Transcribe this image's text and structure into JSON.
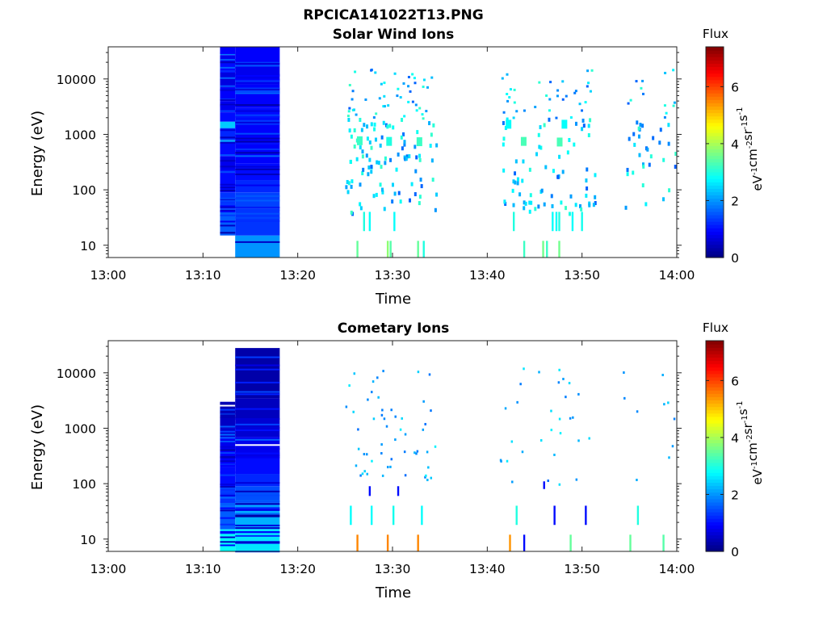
{
  "figure": {
    "title": "RPCICA141022T13.PNG"
  },
  "colorbar": {
    "title": "Flux",
    "unit_base": "eV",
    "unit_parts": [
      {
        "b": "eV",
        "e": "-1"
      },
      {
        "b": "cm",
        "e": "-2"
      },
      {
        "b": "sr",
        "e": "-1"
      },
      {
        "b": "s",
        "e": "-1"
      }
    ],
    "ticks": [
      "0",
      "2",
      "4",
      "6"
    ],
    "range": [
      0,
      7.4
    ],
    "colormap": "jet"
  },
  "chart_data": [
    {
      "type": "heatmap",
      "title": "Solar Wind Ions",
      "xlabel": "Time",
      "ylabel": "Energy (eV)",
      "x_ticks": [
        "13:00",
        "13:10",
        "13:20",
        "13:30",
        "13:40",
        "13:50",
        "14:00"
      ],
      "x_range_min": [
        0,
        60
      ],
      "y_ticks": [
        "10",
        "100",
        "1000",
        "10000"
      ],
      "y_range_eV": [
        6,
        38000
      ],
      "y_scale": "log",
      "colorbar_title": "Flux",
      "colorbar_ticks": [
        "0",
        "2",
        "4",
        "6"
      ],
      "blocks": [
        {
          "t": [
            11.8,
            13.4
          ],
          "e": [
            15,
            38000
          ],
          "rows": [
            [
              15,
              45,
              1.6
            ],
            [
              45,
              90,
              1.3
            ],
            [
              90,
              200,
              1.0
            ],
            [
              200,
              400,
              0.8
            ],
            [
              400,
              700,
              1.0
            ],
            [
              700,
              800,
              2.0
            ],
            [
              800,
              1300,
              1.2
            ],
            [
              1300,
              1700,
              2.4
            ],
            [
              1700,
              2500,
              1.0
            ],
            [
              2500,
              4000,
              0.8
            ],
            [
              4000,
              7000,
              0.9
            ],
            [
              7000,
              13000,
              0.7
            ],
            [
              13000,
              22000,
              1.0
            ],
            [
              22000,
              27000,
              0.8
            ],
            [
              27000,
              30000,
              1.8
            ],
            [
              30000,
              38000,
              0.9
            ]
          ]
        },
        {
          "t": [
            13.4,
            18.1
          ],
          "e": [
            6,
            38000
          ],
          "rows": [
            [
              6,
              15,
              2.0
            ],
            [
              15,
              45,
              1.3
            ],
            [
              45,
              90,
              1.4
            ],
            [
              90,
              150,
              1.2
            ],
            [
              150,
              300,
              1.0
            ],
            [
              300,
              700,
              0.9
            ],
            [
              700,
              1500,
              0.9
            ],
            [
              1500,
              3000,
              1.0
            ],
            [
              3000,
              8000,
              0.9
            ],
            [
              8000,
              20000,
              0.8
            ],
            [
              20000,
              38000,
              0.9
            ]
          ]
        }
      ],
      "lines": [
        {
          "t": 26.3,
          "e": [
            6,
            12
          ],
          "v": 3.5
        },
        {
          "t": 29.5,
          "e": [
            6,
            12
          ],
          "v": 3.8
        },
        {
          "t": 29.8,
          "e": [
            6,
            12
          ],
          "v": 3.4
        },
        {
          "t": 32.7,
          "e": [
            6,
            12
          ],
          "v": 3.5
        },
        {
          "t": 33.3,
          "e": [
            6,
            12
          ],
          "v": 3.0
        },
        {
          "t": 27.0,
          "e": [
            18,
            40
          ],
          "v": 3.0
        },
        {
          "t": 27.6,
          "e": [
            18,
            40
          ],
          "v": 2.8
        },
        {
          "t": 30.2,
          "e": [
            18,
            40
          ],
          "v": 2.8
        },
        {
          "t": 43.9,
          "e": [
            6,
            12
          ],
          "v": 3.2
        },
        {
          "t": 45.9,
          "e": [
            6,
            12
          ],
          "v": 3.6
        },
        {
          "t": 46.3,
          "e": [
            6,
            12
          ],
          "v": 3.2
        },
        {
          "t": 47.6,
          "e": [
            6,
            12
          ],
          "v": 3.6
        },
        {
          "t": 42.8,
          "e": [
            18,
            40
          ],
          "v": 3.0
        },
        {
          "t": 46.9,
          "e": [
            18,
            40
          ],
          "v": 2.8
        },
        {
          "t": 47.3,
          "e": [
            18,
            40
          ],
          "v": 2.8
        },
        {
          "t": 47.6,
          "e": [
            18,
            40
          ],
          "v": 3.0
        },
        {
          "t": 49.0,
          "e": [
            18,
            40
          ],
          "v": 2.8
        },
        {
          "t": 50.0,
          "e": [
            18,
            40
          ],
          "v": 2.9
        }
      ],
      "pixel_clusters": [
        {
          "t": [
            25.0,
            34.6
          ],
          "seed": 11,
          "n": 150
        },
        {
          "t": [
            41.2,
            51.3
          ],
          "seed": 23,
          "n": 110
        },
        {
          "t": [
            54.3,
            59.8
          ],
          "seed": 37,
          "n": 45
        }
      ],
      "highlights": [
        {
          "t": 26.5,
          "e": 780,
          "v": 3.2
        },
        {
          "t": 29.6,
          "e": 760,
          "v": 3.0
        },
        {
          "t": 32.8,
          "e": 750,
          "v": 3.2
        },
        {
          "t": 43.8,
          "e": 760,
          "v": 3.3
        },
        {
          "t": 47.6,
          "e": 740,
          "v": 3.3
        },
        {
          "t": 42.2,
          "e": 1550,
          "v": 2.8
        },
        {
          "t": 48.1,
          "e": 1550,
          "v": 2.8
        }
      ]
    },
    {
      "type": "heatmap",
      "title": "Cometary Ions",
      "xlabel": "Time",
      "ylabel": "Energy (eV)",
      "x_ticks": [
        "13:00",
        "13:10",
        "13:20",
        "13:30",
        "13:40",
        "13:50",
        "14:00"
      ],
      "x_range_min": [
        0,
        60
      ],
      "y_ticks": [
        "10",
        "100",
        "1000",
        "10000"
      ],
      "y_range_eV": [
        6,
        38000
      ],
      "y_scale": "log",
      "colorbar_title": "Flux",
      "colorbar_ticks": [
        "0",
        "2",
        "4",
        "6"
      ],
      "blocks": [
        {
          "t": [
            11.8,
            13.4
          ],
          "e": [
            6,
            3000
          ],
          "rows": [
            [
              6,
              15,
              2.8
            ],
            [
              15,
              45,
              1.6
            ],
            [
              45,
              90,
              1.3
            ],
            [
              90,
              200,
              1.0
            ],
            [
              200,
              400,
              0.9
            ],
            [
              400,
              700,
              0.8
            ],
            [
              700,
              1000,
              0.6
            ],
            [
              1000,
              1600,
              0.5
            ],
            [
              1600,
              3000,
              0.4
            ]
          ]
        },
        {
          "t": [
            13.4,
            18.1
          ],
          "e": [
            6,
            28000
          ],
          "rows": [
            [
              6,
              15,
              2.6
            ],
            [
              15,
              45,
              2.2
            ],
            [
              45,
              90,
              1.5
            ],
            [
              90,
              150,
              1.2
            ],
            [
              150,
              300,
              1.0
            ],
            [
              300,
              700,
              0.8
            ],
            [
              700,
              1500,
              0.6
            ],
            [
              1500,
              3500,
              0.45
            ],
            [
              3500,
              28000,
              0.3
            ]
          ]
        }
      ],
      "lines": [
        {
          "t": 26.3,
          "e": [
            6,
            12
          ],
          "v": 5.5
        },
        {
          "t": 29.5,
          "e": [
            6,
            12
          ],
          "v": 5.5
        },
        {
          "t": 32.7,
          "e": [
            6,
            12
          ],
          "v": 5.5
        },
        {
          "t": 42.4,
          "e": [
            6,
            12
          ],
          "v": 5.4
        },
        {
          "t": 43.9,
          "e": [
            6,
            12
          ],
          "v": 1.0
        },
        {
          "t": 48.8,
          "e": [
            6,
            12
          ],
          "v": 3.5
        },
        {
          "t": 55.1,
          "e": [
            6,
            12
          ],
          "v": 3.5
        },
        {
          "t": 58.6,
          "e": [
            6,
            12
          ],
          "v": 3.4
        },
        {
          "t": 25.6,
          "e": [
            18,
            40
          ],
          "v": 2.8
        },
        {
          "t": 27.8,
          "e": [
            18,
            40
          ],
          "v": 2.8
        },
        {
          "t": 30.1,
          "e": [
            18,
            40
          ],
          "v": 2.9
        },
        {
          "t": 33.1,
          "e": [
            18,
            40
          ],
          "v": 2.8
        },
        {
          "t": 43.1,
          "e": [
            18,
            40
          ],
          "v": 3.0
        },
        {
          "t": 47.1,
          "e": [
            18,
            40
          ],
          "v": 1.0
        },
        {
          "t": 50.4,
          "e": [
            18,
            40
          ],
          "v": 1.0
        },
        {
          "t": 55.9,
          "e": [
            18,
            40
          ],
          "v": 3.0
        },
        {
          "t": 27.6,
          "e": [
            60,
            90
          ],
          "v": 1.0
        },
        {
          "t": 30.6,
          "e": [
            60,
            90
          ],
          "v": 1.0
        },
        {
          "t": 46.0,
          "e": [
            80,
            110
          ],
          "v": 1.0
        }
      ],
      "pixel_clusters": [
        {
          "t": [
            25.0,
            34.6
          ],
          "seed": 5,
          "n": 55
        },
        {
          "t": [
            41.2,
            51.3
          ],
          "seed": 41,
          "n": 30
        },
        {
          "t": [
            54.3,
            59.8
          ],
          "seed": 59,
          "n": 10
        }
      ],
      "highlights": []
    }
  ]
}
